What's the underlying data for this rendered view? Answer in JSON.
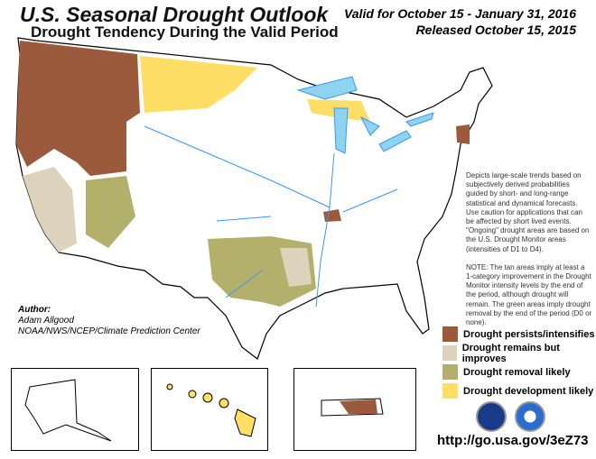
{
  "header": {
    "title": "U.S. Seasonal Drought Outlook",
    "subtitle": "Drought Tendency During the Valid Period",
    "valid": "Valid for October 15 - January 31, 2016",
    "released": "Released October 15, 2015"
  },
  "description": "Depicts large-scale trends based on subjectively derived probabilities guided by short- and long-range statistical and dynamical forecasts. Use caution for applications that can be affected by short lived events. \"Ongoing\" drought areas are based on the U.S. Drought Monitor areas (intensities of D1 to D4).",
  "note": "NOTE: The tan areas imply at least a 1-category improvement in the Drought Monitor intensity levels by the end of the period, although drought will remain. The green areas imply drought removal by the end of the period (D0 or none).",
  "legend": [
    {
      "label": "Drought persists/intensifies",
      "color": "#9c5a3c"
    },
    {
      "label": "Drought remains but improves",
      "color": "#ddd2bb"
    },
    {
      "label": "Drought removal likely",
      "color": "#b2b06a"
    },
    {
      "label": "Drought development likely",
      "color": "#ffde66"
    }
  ],
  "author": {
    "label": "Author:",
    "name": "Adam Allgood",
    "org": "NOAA/NWS/NCEP/Climate Prediction Center"
  },
  "url": "http://go.usa.gov/3eZ73",
  "colors": {
    "water": "#8fd3f0",
    "rivers": "#3399ff"
  },
  "insets": [
    "Alaska",
    "Hawaii",
    "Puerto Rico"
  ],
  "logos": [
    "noaa-nws-logo",
    "noaa-logo"
  ]
}
